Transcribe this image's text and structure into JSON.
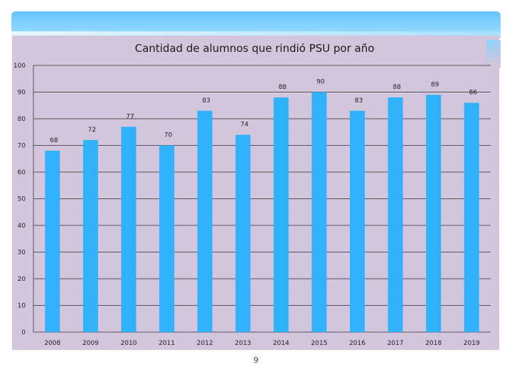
{
  "slide": {
    "page_number": "9"
  },
  "colors": {
    "bar": "#2fb2fb",
    "grid": "#555555",
    "text": "#222222",
    "panel": "#d2c5dc"
  },
  "chart_data": {
    "type": "bar",
    "title": "Cantidad de alumnos que rindió PSU por año",
    "xlabel": "",
    "ylabel": "",
    "categories": [
      "2008",
      "2009",
      "2010",
      "2011",
      "2012",
      "2013",
      "2014",
      "2015",
      "2016",
      "2017",
      "2018",
      "2019"
    ],
    "values": [
      68,
      72,
      77,
      70,
      83,
      74,
      88,
      90,
      83,
      88,
      89,
      86
    ],
    "ylim": [
      0,
      100
    ],
    "yticks": [
      0,
      10,
      20,
      30,
      40,
      50,
      60,
      70,
      80,
      90,
      100
    ],
    "grid": true,
    "legend": "none"
  }
}
